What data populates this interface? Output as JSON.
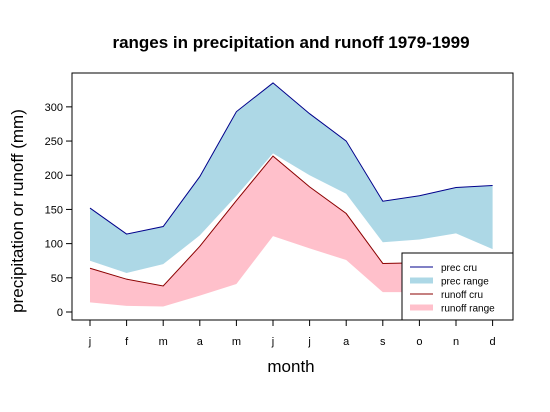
{
  "chart_data": {
    "type": "area",
    "title": "ranges in precipitation and runoff 1979-1999",
    "xlabel": "month",
    "ylabel": "precipitation or runoff (mm)",
    "categories": [
      "j",
      "f",
      "m",
      "a",
      "m",
      "j",
      "j",
      "a",
      "s",
      "o",
      "n",
      "d"
    ],
    "ylim": [
      0,
      340
    ],
    "yticks": [
      0,
      50,
      100,
      150,
      200,
      250,
      300
    ],
    "legend_position": "bottom-right",
    "series": [
      {
        "name": "prec range",
        "kind": "band",
        "color": "#add8e6",
        "lower": [
          75,
          57,
          70,
          112,
          170,
          232,
          200,
          173,
          102,
          106,
          115,
          92
        ],
        "upper": [
          152,
          114,
          125,
          198,
          293,
          335,
          290,
          250,
          162,
          170,
          182,
          185
        ]
      },
      {
        "name": "runoff range",
        "kind": "band",
        "color": "#ffc0cb",
        "lower": [
          14,
          9,
          8,
          24,
          41,
          111,
          93,
          76,
          29,
          29,
          27,
          27
        ],
        "upper": [
          64,
          48,
          38,
          96,
          163,
          228,
          183,
          144,
          71,
          72,
          68,
          67
        ]
      },
      {
        "name": "prec cru",
        "kind": "line",
        "color": "#00008b",
        "values": [
          152,
          114,
          125,
          198,
          293,
          335,
          290,
          250,
          162,
          170,
          182,
          185
        ]
      },
      {
        "name": "runoff cru",
        "kind": "line",
        "color": "#8b0000",
        "values": [
          64,
          48,
          38,
          96,
          163,
          228,
          183,
          144,
          71,
          72,
          68,
          67
        ]
      }
    ],
    "legend": [
      {
        "label": "prec cru",
        "style": "line",
        "color": "#00008b"
      },
      {
        "label": "prec range",
        "style": "thick",
        "color": "#add8e6"
      },
      {
        "label": "runoff cru",
        "style": "line",
        "color": "#8b0000"
      },
      {
        "label": "runoff range",
        "style": "thick",
        "color": "#ffc0cb"
      }
    ]
  }
}
